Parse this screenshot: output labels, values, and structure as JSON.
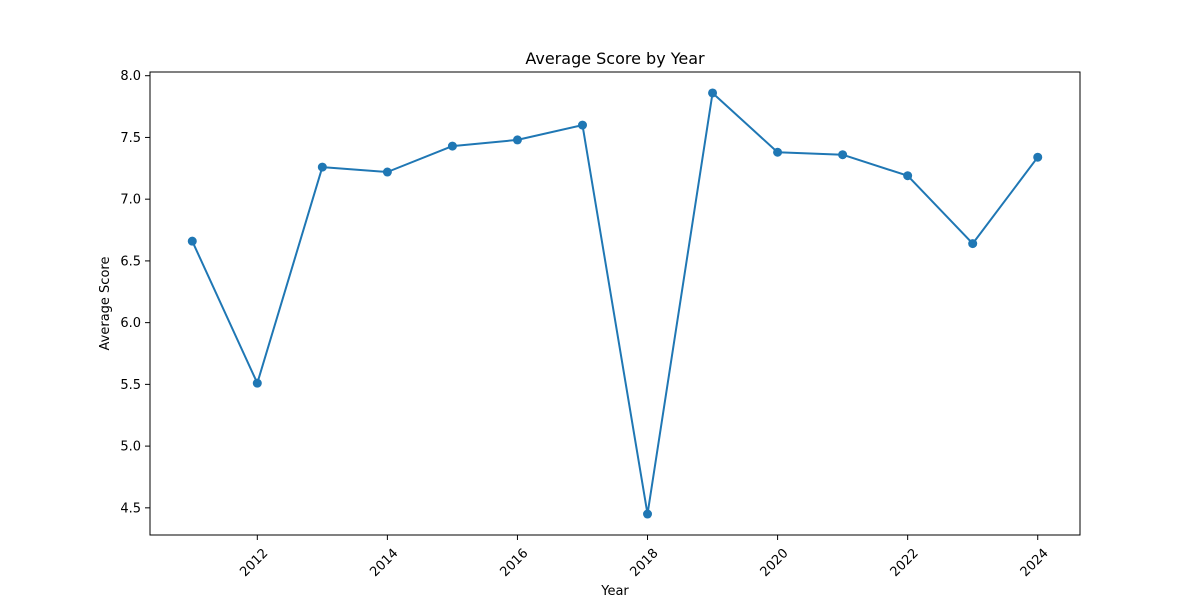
{
  "chart_data": {
    "type": "line",
    "title": "Average Score by Year",
    "xlabel": "Year",
    "ylabel": "Average Score",
    "x": [
      2011,
      2012,
      2013,
      2014,
      2015,
      2016,
      2017,
      2018,
      2019,
      2020,
      2021,
      2022,
      2023,
      2024
    ],
    "series": [
      {
        "values": [
          6.66,
          5.51,
          7.26,
          7.22,
          7.43,
          7.48,
          7.6,
          4.45,
          7.86,
          7.38,
          7.36,
          7.19,
          6.64,
          7.34
        ],
        "color": "#1f77b4",
        "marker": "circle"
      }
    ],
    "xlim": [
      2010.35,
      2024.65
    ],
    "ylim": [
      4.28,
      8.03
    ],
    "xticks": [
      2012,
      2014,
      2016,
      2018,
      2020,
      2022,
      2024
    ],
    "xtick_labels": [
      "2012",
      "2014",
      "2016",
      "2018",
      "2020",
      "2022",
      "2024"
    ],
    "xtick_rotation_deg": 45,
    "yticks": [
      4.5,
      5.0,
      5.5,
      6.0,
      6.5,
      7.0,
      7.5,
      8.0
    ],
    "ytick_labels": [
      "4.5",
      "5.0",
      "5.5",
      "6.0",
      "6.5",
      "7.0",
      "7.5",
      "8.0"
    ],
    "grid": false,
    "legend": false
  }
}
